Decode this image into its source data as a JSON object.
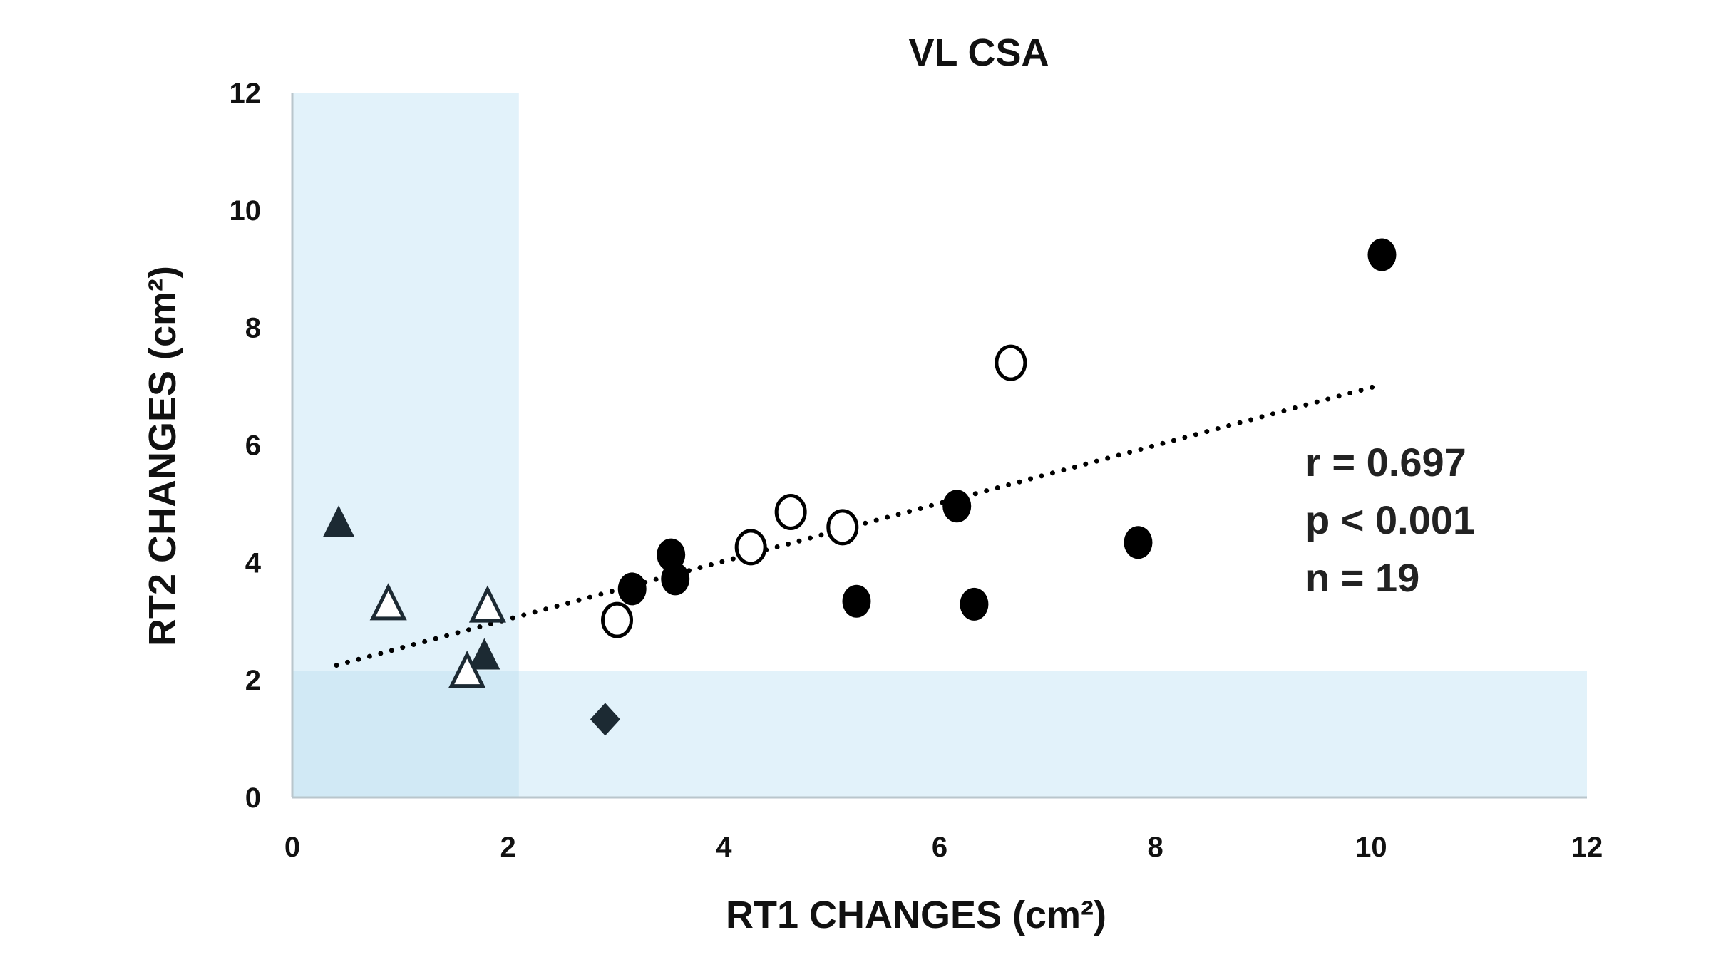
{
  "chart_data": {
    "type": "scatter",
    "title": "VL CSA",
    "xlabel": "RT1 CHANGES (cm²)",
    "ylabel": "RT2 CHANGES (cm²)",
    "xlim": [
      0,
      12
    ],
    "ylim": [
      0,
      12
    ],
    "xticks": [
      "0",
      "2",
      "4",
      "6",
      "8",
      "10",
      "12"
    ],
    "yticks": [
      "0",
      "2",
      "4",
      "6",
      "8",
      "10",
      "12"
    ],
    "grid": false,
    "shaded_regions": [
      {
        "axis": "x",
        "range": [
          0,
          2.1
        ],
        "color": "#e2f2fa"
      },
      {
        "axis": "y",
        "range": [
          0,
          2.15
        ],
        "color": "#e2f2fa"
      }
    ],
    "overlap_color": "#d1e9f5",
    "trendline": {
      "style": "dotted",
      "x": [
        0.41,
        10.08
      ],
      "y": [
        2.25,
        7.02
      ]
    },
    "points": [
      {
        "marker": "triangle-filled",
        "x": 0.43,
        "y": 4.68
      },
      {
        "marker": "triangle-open",
        "x": 0.89,
        "y": 3.29
      },
      {
        "marker": "triangle-open",
        "x": 1.81,
        "y": 3.25
      },
      {
        "marker": "triangle-filled",
        "x": 1.78,
        "y": 2.42
      },
      {
        "marker": "triangle-open",
        "x": 1.62,
        "y": 2.14
      },
      {
        "marker": "diamond-filled",
        "x": 2.9,
        "y": 1.33
      },
      {
        "marker": "circle-open",
        "x": 3.01,
        "y": 3.02
      },
      {
        "marker": "circle-filled",
        "x": 3.15,
        "y": 3.55
      },
      {
        "marker": "circle-filled",
        "x": 3.51,
        "y": 4.13
      },
      {
        "marker": "circle-filled",
        "x": 3.55,
        "y": 3.72
      },
      {
        "marker": "circle-open",
        "x": 4.25,
        "y": 4.26
      },
      {
        "marker": "circle-open",
        "x": 4.62,
        "y": 4.86
      },
      {
        "marker": "circle-open",
        "x": 5.1,
        "y": 4.6
      },
      {
        "marker": "circle-filled",
        "x": 5.23,
        "y": 3.34
      },
      {
        "marker": "circle-filled",
        "x": 6.16,
        "y": 4.96
      },
      {
        "marker": "circle-filled",
        "x": 6.32,
        "y": 3.29
      },
      {
        "marker": "circle-open",
        "x": 6.66,
        "y": 7.4
      },
      {
        "marker": "circle-filled",
        "x": 7.84,
        "y": 4.34
      },
      {
        "marker": "circle-filled",
        "x": 10.1,
        "y": 9.24
      }
    ],
    "annotations": [
      "r = 0.697",
      "p < 0.001",
      "n = 19"
    ],
    "marker_color": "#000000",
    "triangle_color": "#1c2a33"
  }
}
